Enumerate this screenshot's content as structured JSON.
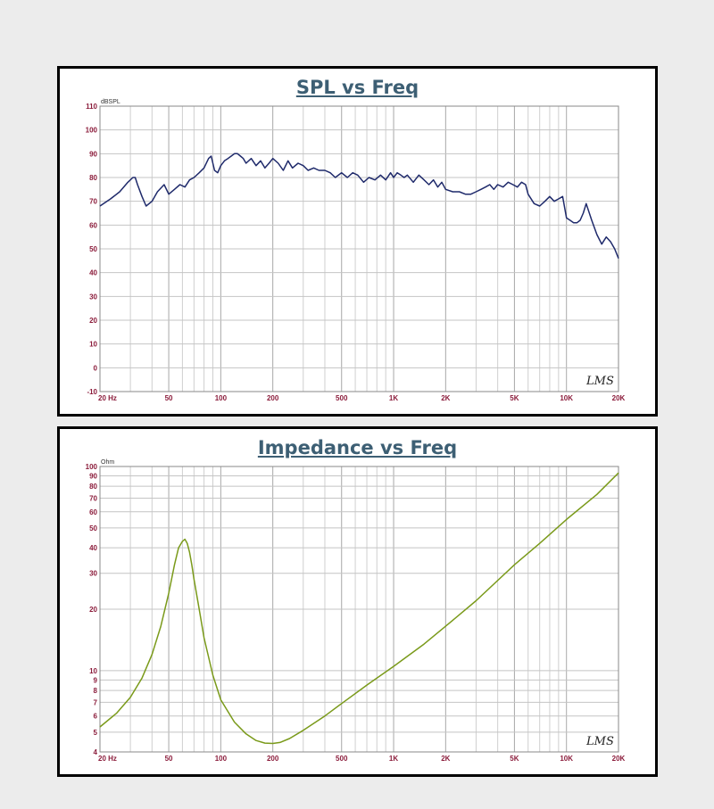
{
  "chart_data": [
    {
      "type": "line",
      "title": "SPL vs Freq",
      "ylabel": "dBSPL",
      "xscale": "log",
      "xlim": [
        20,
        20000
      ],
      "ylim": [
        -10,
        110
      ],
      "grid": true,
      "logo": "LMS",
      "x_ticks": [
        {
          "value": 20,
          "label": "20 Hz"
        },
        {
          "value": 50,
          "label": "50"
        },
        {
          "value": 100,
          "label": "100"
        },
        {
          "value": 200,
          "label": "200"
        },
        {
          "value": 500,
          "label": "500"
        },
        {
          "value": 1000,
          "label": "1K"
        },
        {
          "value": 2000,
          "label": "2K"
        },
        {
          "value": 5000,
          "label": "5K"
        },
        {
          "value": 10000,
          "label": "10K"
        },
        {
          "value": 20000,
          "label": "20K"
        }
      ],
      "y_ticks": [
        {
          "value": 110,
          "label": "110"
        },
        {
          "value": 100,
          "label": "100"
        },
        {
          "value": 90,
          "label": "90"
        },
        {
          "value": 80,
          "label": "80"
        },
        {
          "value": 70,
          "label": "70"
        },
        {
          "value": 60,
          "label": "60"
        },
        {
          "value": 50,
          "label": "50"
        },
        {
          "value": 40,
          "label": "40"
        },
        {
          "value": 30,
          "label": "30"
        },
        {
          "value": 20,
          "label": "20"
        },
        {
          "value": 10,
          "label": "10"
        },
        {
          "value": 0,
          "label": "0"
        },
        {
          "value": -10,
          "label": "-10"
        }
      ],
      "color": "#1f2a6b",
      "series": [
        {
          "x": [
            20,
            23,
            26,
            29,
            31,
            32,
            33,
            35,
            37,
            40,
            43,
            47,
            50,
            54,
            58,
            62,
            66,
            70,
            75,
            80,
            85,
            88,
            92,
            96,
            100,
            105,
            110,
            115,
            120,
            125,
            130,
            135,
            140,
            150,
            160,
            170,
            180,
            190,
            200,
            215,
            230,
            245,
            260,
            280,
            300,
            320,
            345,
            370,
            400,
            430,
            460,
            500,
            540,
            580,
            620,
            670,
            720,
            780,
            840,
            900,
            960,
            1000,
            1050,
            1100,
            1150,
            1200,
            1300,
            1400,
            1500,
            1600,
            1700,
            1800,
            1900,
            2000,
            2200,
            2400,
            2600,
            2800,
            3000,
            3200,
            3400,
            3600,
            3800,
            4000,
            4300,
            4600,
            4900,
            5200,
            5500,
            5800,
            6000,
            6500,
            7000,
            7500,
            8000,
            8500,
            9000,
            9500,
            10000,
            10500,
            11000,
            11500,
            12000,
            12500,
            13000,
            14000,
            15000,
            16000,
            17000,
            18000,
            19000,
            20000
          ],
          "y": [
            68,
            71,
            74,
            78,
            80,
            80,
            77,
            72,
            68,
            70,
            74,
            77,
            73,
            75,
            77,
            76,
            79,
            80,
            82,
            84,
            88,
            89,
            83,
            82,
            85,
            87,
            88,
            89,
            90,
            90,
            89,
            88,
            86,
            88,
            85,
            87,
            84,
            86,
            88,
            86,
            83,
            87,
            84,
            86,
            85,
            83,
            84,
            83,
            83,
            82,
            80,
            82,
            80,
            82,
            81,
            78,
            80,
            79,
            81,
            79,
            82,
            80,
            82,
            81,
            80,
            81,
            78,
            81,
            79,
            77,
            79,
            76,
            78,
            75,
            74,
            74,
            73,
            73,
            74,
            75,
            76,
            77,
            75,
            77,
            76,
            78,
            77,
            76,
            78,
            77,
            73,
            69,
            68,
            70,
            72,
            70,
            71,
            72,
            63,
            62,
            61,
            61,
            62,
            65,
            69,
            62,
            56,
            52,
            55,
            53,
            50,
            46
          ]
        }
      ]
    },
    {
      "type": "line",
      "title": "Impedance vs Freq",
      "ylabel": "Ohm",
      "xscale": "log",
      "yscale": "log",
      "xlim": [
        20,
        20000
      ],
      "ylim": [
        4,
        100
      ],
      "grid": true,
      "logo": "LMS",
      "x_ticks": [
        {
          "value": 20,
          "label": "20 Hz"
        },
        {
          "value": 50,
          "label": "50"
        },
        {
          "value": 100,
          "label": "100"
        },
        {
          "value": 200,
          "label": "200"
        },
        {
          "value": 500,
          "label": "500"
        },
        {
          "value": 1000,
          "label": "1K"
        },
        {
          "value": 2000,
          "label": "2K"
        },
        {
          "value": 5000,
          "label": "5K"
        },
        {
          "value": 10000,
          "label": "10K"
        },
        {
          "value": 20000,
          "label": "20K"
        }
      ],
      "y_ticks": [
        {
          "value": 100,
          "label": "100"
        },
        {
          "value": 90,
          "label": "90"
        },
        {
          "value": 80,
          "label": "80"
        },
        {
          "value": 70,
          "label": "70"
        },
        {
          "value": 60,
          "label": "60"
        },
        {
          "value": 50,
          "label": "50"
        },
        {
          "value": 40,
          "label": "40"
        },
        {
          "value": 30,
          "label": "30"
        },
        {
          "value": 20,
          "label": "20"
        },
        {
          "value": 10,
          "label": "10"
        },
        {
          "value": 9,
          "label": "9"
        },
        {
          "value": 8,
          "label": "8"
        },
        {
          "value": 7,
          "label": "7"
        },
        {
          "value": 6,
          "label": "6"
        },
        {
          "value": 5,
          "label": "5"
        },
        {
          "value": 4,
          "label": "4"
        }
      ],
      "color": "#7a9a1a",
      "series": [
        {
          "x": [
            20,
            25,
            30,
            35,
            40,
            45,
            50,
            54,
            57,
            60,
            62,
            64,
            66,
            68,
            70,
            75,
            80,
            90,
            100,
            120,
            140,
            160,
            180,
            200,
            220,
            250,
            300,
            400,
            500,
            700,
            1000,
            1500,
            2000,
            3000,
            5000,
            7000,
            10000,
            15000,
            20000
          ],
          "y": [
            5.3,
            6.2,
            7.4,
            9.2,
            12,
            16.5,
            24,
            33,
            40,
            43,
            44,
            42,
            38,
            33,
            28,
            20,
            14.5,
            9.5,
            7.2,
            5.6,
            4.9,
            4.55,
            4.42,
            4.4,
            4.45,
            4.65,
            5.1,
            6.0,
            6.9,
            8.5,
            10.5,
            13.5,
            16.5,
            22,
            33,
            42,
            55,
            73,
            93
          ]
        }
      ]
    }
  ]
}
